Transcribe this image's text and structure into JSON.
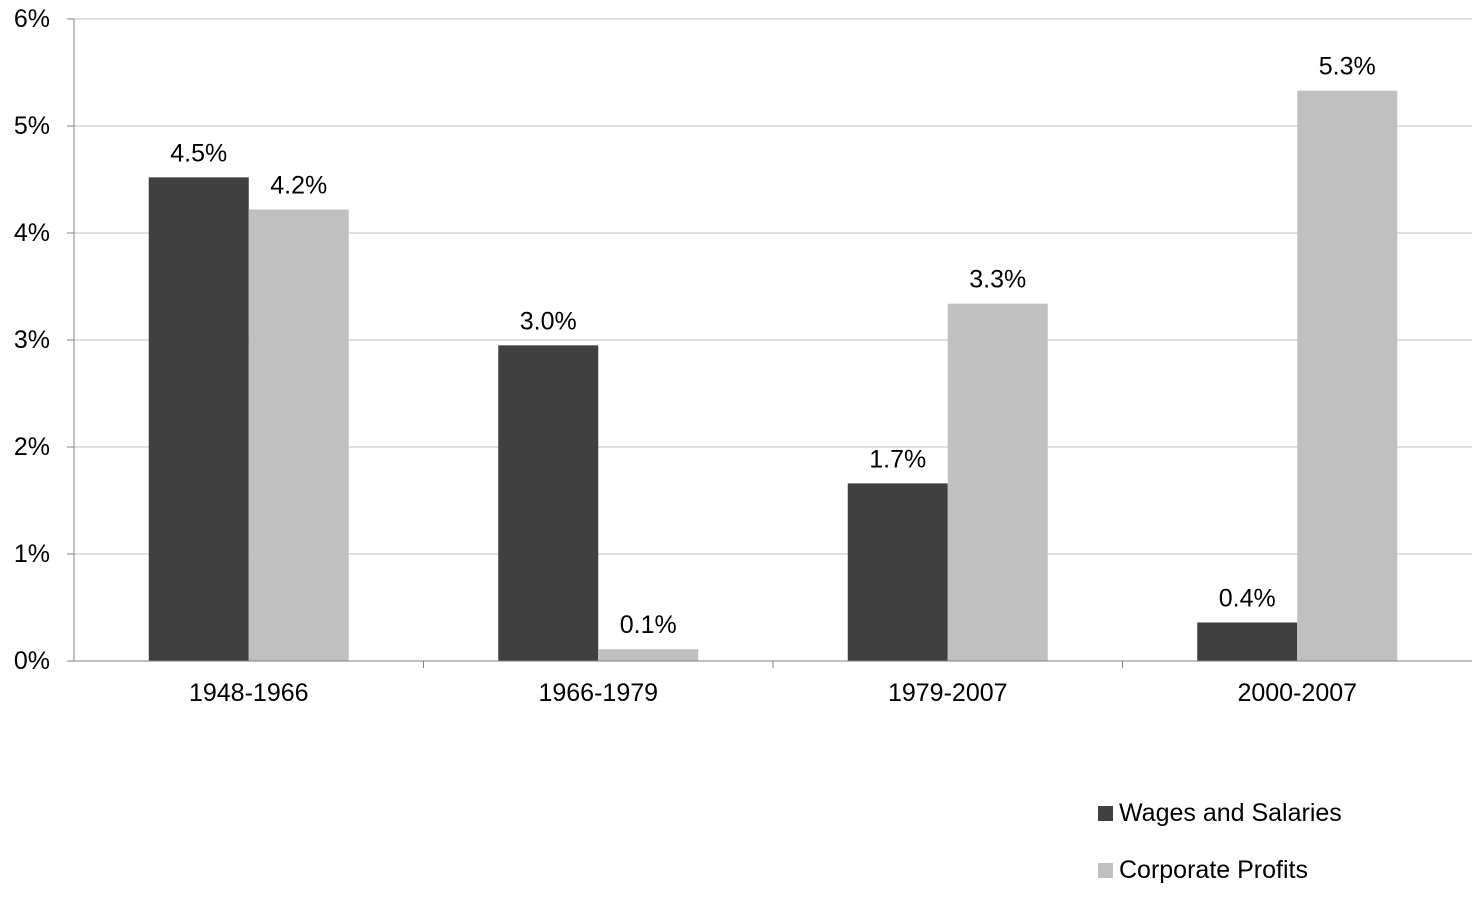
{
  "chart_data": {
    "type": "bar",
    "categories": [
      "1948-1966",
      "1966-1979",
      "1979-2007",
      "2000-2007"
    ],
    "series": [
      {
        "name": "Wages and Salaries",
        "values": [
          4.52,
          2.95,
          1.66,
          0.36
        ],
        "labels": [
          "4.5%",
          "3.0%",
          "1.7%",
          "0.4%"
        ],
        "color": "#404040"
      },
      {
        "name": "Corporate Profits",
        "values": [
          4.22,
          0.11,
          3.34,
          5.33
        ],
        "labels": [
          "4.2%",
          "0.1%",
          "3.3%",
          "5.3%"
        ],
        "color": "#c0c0c0"
      }
    ],
    "yticks": [
      0,
      1,
      2,
      3,
      4,
      5,
      6
    ],
    "ytick_labels": [
      "0%",
      "1%",
      "2%",
      "3%",
      "4%",
      "5%",
      "6%"
    ],
    "ylim": [
      0,
      6
    ],
    "grid": true,
    "legend_position": "bottom-right",
    "title": "",
    "xlabel": "",
    "ylabel": ""
  }
}
